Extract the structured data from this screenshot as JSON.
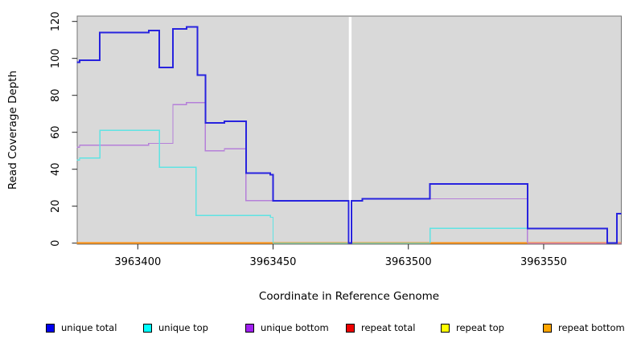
{
  "chart_data": {
    "type": "line",
    "subtype": "step-coverage-plot",
    "title": "",
    "xlabel": "Coordinate in Reference Genome",
    "ylabel": "Read Coverage Depth",
    "xlim": [
      3963377.5,
      3963578.7
    ],
    "ylim": [
      0,
      120
    ],
    "x_ticks": [
      3963400,
      3963450,
      3963500,
      3963550
    ],
    "y_ticks": [
      0,
      20,
      40,
      60,
      80,
      100,
      120
    ],
    "grid": "off",
    "panel_background": "#D9D9D9",
    "panel_border": "#757575",
    "gap_band": {
      "x1": 3963478,
      "x2": 3963479,
      "color": "#FFFFFF"
    },
    "series": [
      {
        "id": "unique-total",
        "label": "unique total",
        "line_color": "#2823DE",
        "legend_color": "#0000EE",
        "width": 2,
        "paths": [
          {
            "steps": [
              [
                3963377.5,
                98
              ],
              [
                3963378.5,
                99
              ],
              [
                3963386,
                114
              ],
              [
                3963404,
                115
              ],
              [
                3963408,
                95
              ],
              [
                3963413,
                116
              ],
              [
                3963418,
                117
              ],
              [
                3963422,
                91
              ],
              [
                3963425,
                65
              ],
              [
                3963432,
                66
              ],
              [
                3963440,
                38
              ],
              [
                3963449,
                37
              ],
              [
                3963450,
                23
              ],
              [
                3963478,
                0
              ],
              [
                3963479,
                23
              ],
              [
                3963483,
                24
              ],
              [
                3963508,
                32
              ],
              [
                3963544,
                8
              ],
              [
                3963573.5,
                0
              ],
              [
                3963577,
                16
              ]
            ],
            "end": 3963578.7
          }
        ]
      },
      {
        "id": "unique-top",
        "label": "unique top",
        "line_color": "#5FE3E3",
        "legend_color": "#00FFFF",
        "width": 1.4,
        "paths": [
          {
            "steps": [
              [
                3963377.5,
                45
              ],
              [
                3963378.5,
                46
              ],
              [
                3963386,
                61
              ],
              [
                3963408,
                41
              ],
              [
                3963421.5,
                15
              ],
              [
                3963449,
                14
              ],
              [
                3963450,
                0
              ]
            ],
            "end": 3963450
          },
          {
            "from_zero": true,
            "steps": [
              [
                3963508,
                8
              ],
              [
                3963573.5,
                0
              ],
              [
                3963577,
                16
              ]
            ],
            "end": 3963578.7
          }
        ]
      },
      {
        "id": "unique-bottom",
        "label": "unique bottom",
        "line_color": "#B57FD9",
        "legend_color": "#A020F0",
        "width": 1.4,
        "paths": [
          {
            "steps": [
              [
                3963377.5,
                52
              ],
              [
                3963378.5,
                53
              ],
              [
                3963404,
                54
              ],
              [
                3963413,
                75
              ],
              [
                3963418,
                76
              ],
              [
                3963425,
                50
              ],
              [
                3963432,
                51
              ],
              [
                3963440,
                23
              ],
              [
                3963478,
                0
              ],
              [
                3963479,
                23
              ],
              [
                3963483,
                24
              ],
              [
                3963544,
                0
              ]
            ],
            "end": 3963544
          }
        ]
      },
      {
        "id": "repeat-total",
        "label": "repeat total",
        "line_color": "#DD1111",
        "legend_color": "#EE0000",
        "width": 2,
        "paths": [
          {
            "steps": [
              [
                3963377.5,
                0
              ]
            ],
            "end": 3963578.7
          }
        ]
      },
      {
        "id": "repeat-top",
        "label": "repeat top",
        "line_color": "#EEEE00",
        "legend_color": "#FFFF00",
        "width": 2,
        "paths": [
          {
            "steps": [
              [
                3963377.5,
                0
              ]
            ],
            "end": 3963578.7
          }
        ]
      },
      {
        "id": "repeat-bottom",
        "label": "repeat bottom",
        "line_color": "#FF8F0A",
        "legend_color": "#FFA500",
        "width": 2,
        "paths": [
          {
            "steps": [
              [
                3963377.5,
                0
              ]
            ],
            "end": 3963578.7
          }
        ]
      }
    ],
    "baseline_overlaps": [
      {
        "x1": 3963450,
        "x2": 3963508,
        "color": "#8FCB96",
        "note": "unique top at 0 blends over repeat lines (green)"
      },
      {
        "x1": 3963544,
        "x2": 3963578.7,
        "color": "#E87F98",
        "note": "unique bottom at 0 blends over repeat lines (pink)"
      }
    ],
    "legend": [
      {
        "label": "unique total",
        "swatch": "#0000EE"
      },
      {
        "label": "unique top",
        "swatch": "#00FFFF"
      },
      {
        "label": "unique bottom",
        "swatch": "#A020F0"
      },
      {
        "label": "repeat total",
        "swatch": "#EE0000"
      },
      {
        "label": "repeat top",
        "swatch": "#FFFF00"
      },
      {
        "label": "repeat bottom",
        "swatch": "#FFA500"
      }
    ],
    "legend_position": "bottom"
  }
}
